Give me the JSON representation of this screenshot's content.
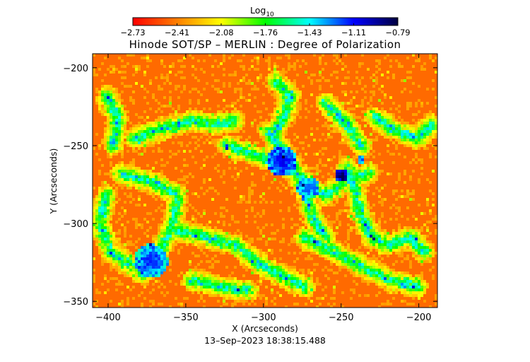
{
  "chart_data": {
    "type": "heatmap",
    "title": "Hinode SOT/SP – MERLIN : Degree of Polarization",
    "colorbar": {
      "label": "Log",
      "label_sub": "10",
      "ticks": [
        "−2.73",
        "−2.41",
        "−2.08",
        "−1.76",
        "−1.43",
        "−1.11",
        "−0.79"
      ],
      "range": [
        -2.73,
        -0.79
      ],
      "colors": [
        "#ff0000",
        "#ff7f00",
        "#ffff00",
        "#00ff00",
        "#00ffff",
        "#0000ff",
        "#000040"
      ]
    },
    "xlabel": "X (Arcseconds)",
    "ylabel": "Y (Arcseconds)",
    "xlim": [
      -410,
      -188
    ],
    "ylim": [
      -354,
      -191
    ],
    "x_ticks": [
      {
        "value": -400,
        "label": "−400"
      },
      {
        "value": -350,
        "label": "−350"
      },
      {
        "value": -300,
        "label": "−300"
      },
      {
        "value": -250,
        "label": "−250"
      },
      {
        "value": -200,
        "label": "−200"
      }
    ],
    "y_ticks": [
      {
        "value": -200,
        "label": "−200"
      },
      {
        "value": -250,
        "label": "−250"
      },
      {
        "value": -300,
        "label": "−300"
      },
      {
        "value": -350,
        "label": "−350"
      }
    ],
    "timestamp": "13–Sep–2023 18:38:15.488",
    "grid": false
  }
}
